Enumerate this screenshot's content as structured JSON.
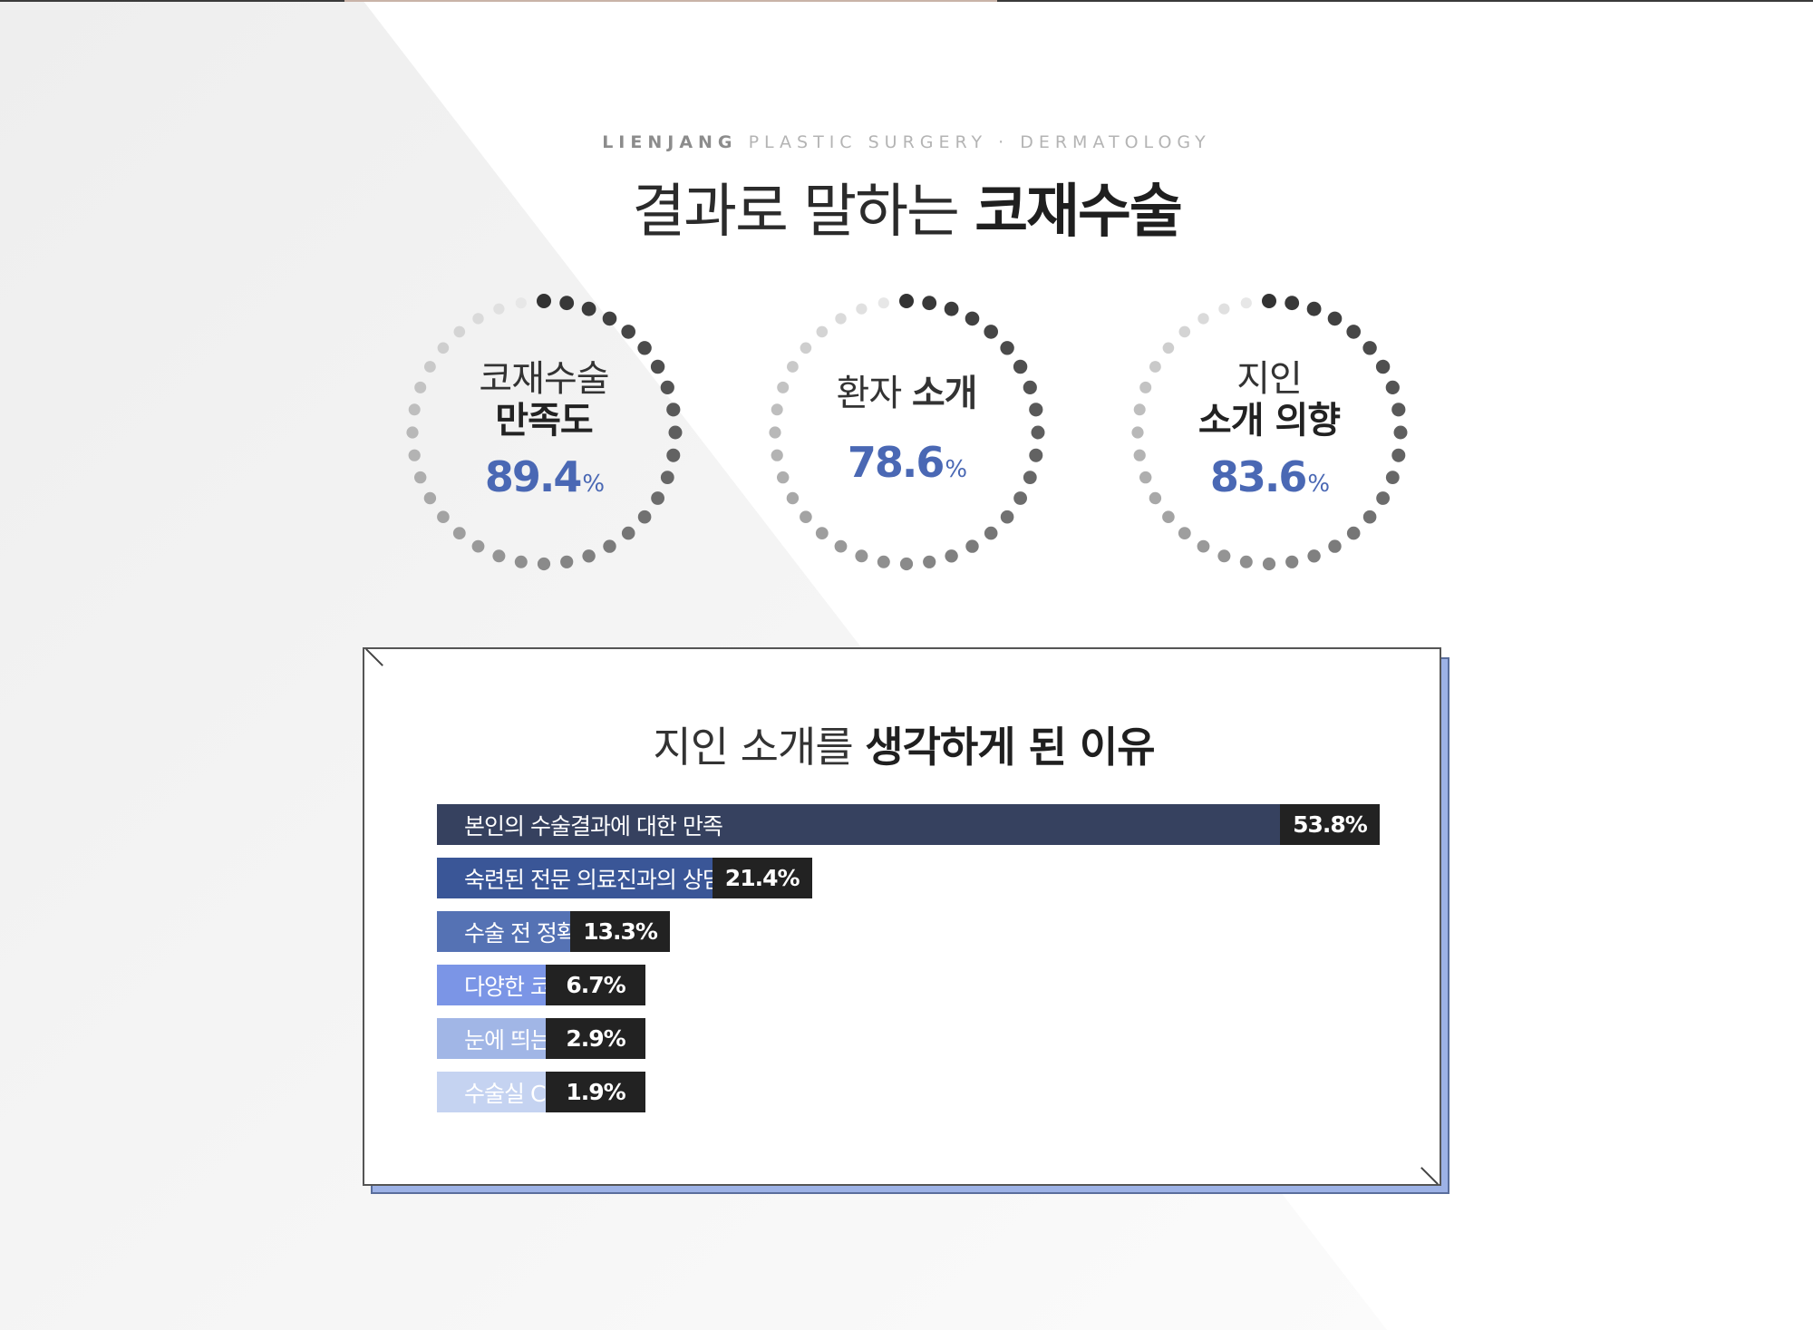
{
  "header": {
    "brand": "LIENJANG",
    "subtitle": "PLASTIC SURGERY · DERMATOLOGY",
    "title_light": "결과로 말하는",
    "title_bold": "코재수술"
  },
  "stats": [
    {
      "line1": "코재수술",
      "line2": "만족도",
      "value": "89.4",
      "unit": "%",
      "level": 0.894
    },
    {
      "line1": "환자",
      "line2": "소개",
      "value": "78.6",
      "unit": "%",
      "level": 0.786
    },
    {
      "line1": "지인",
      "line2": "소개 의향",
      "value": "83.6",
      "unit": "%",
      "level": 0.836
    }
  ],
  "panel": {
    "title_light": "지인 소개를",
    "title_bold": "생각하게 된 이유"
  },
  "chart_data": {
    "type": "bar",
    "categories": [
      "본인의 수술결과에 대한 만족",
      "숙련된 전문 의료진과의 상담",
      "수술 전 정확한 진단",
      "다양한 코재수술 케이스",
      "눈에 띄는 전후사진",
      "수술실 CCTV 설치"
    ],
    "values": [
      53.8,
      21.4,
      13.3,
      6.7,
      2.9,
      1.9
    ],
    "value_labels": [
      "53.8%",
      "21.4%",
      "13.3%",
      "6.7%",
      "2.9%",
      "1.9%"
    ],
    "colors": [
      "#36415f",
      "#3a5697",
      "#5572b4",
      "#7b95e6",
      "#a1b6e6",
      "#c5d3f1"
    ],
    "title": "",
    "xlabel": "",
    "ylabel": ""
  },
  "colors": {
    "accent": "#4a68b4",
    "dot_dark": "#333333",
    "dot_light": "#eeeeee",
    "panel_shadow": "#9db2e6"
  }
}
